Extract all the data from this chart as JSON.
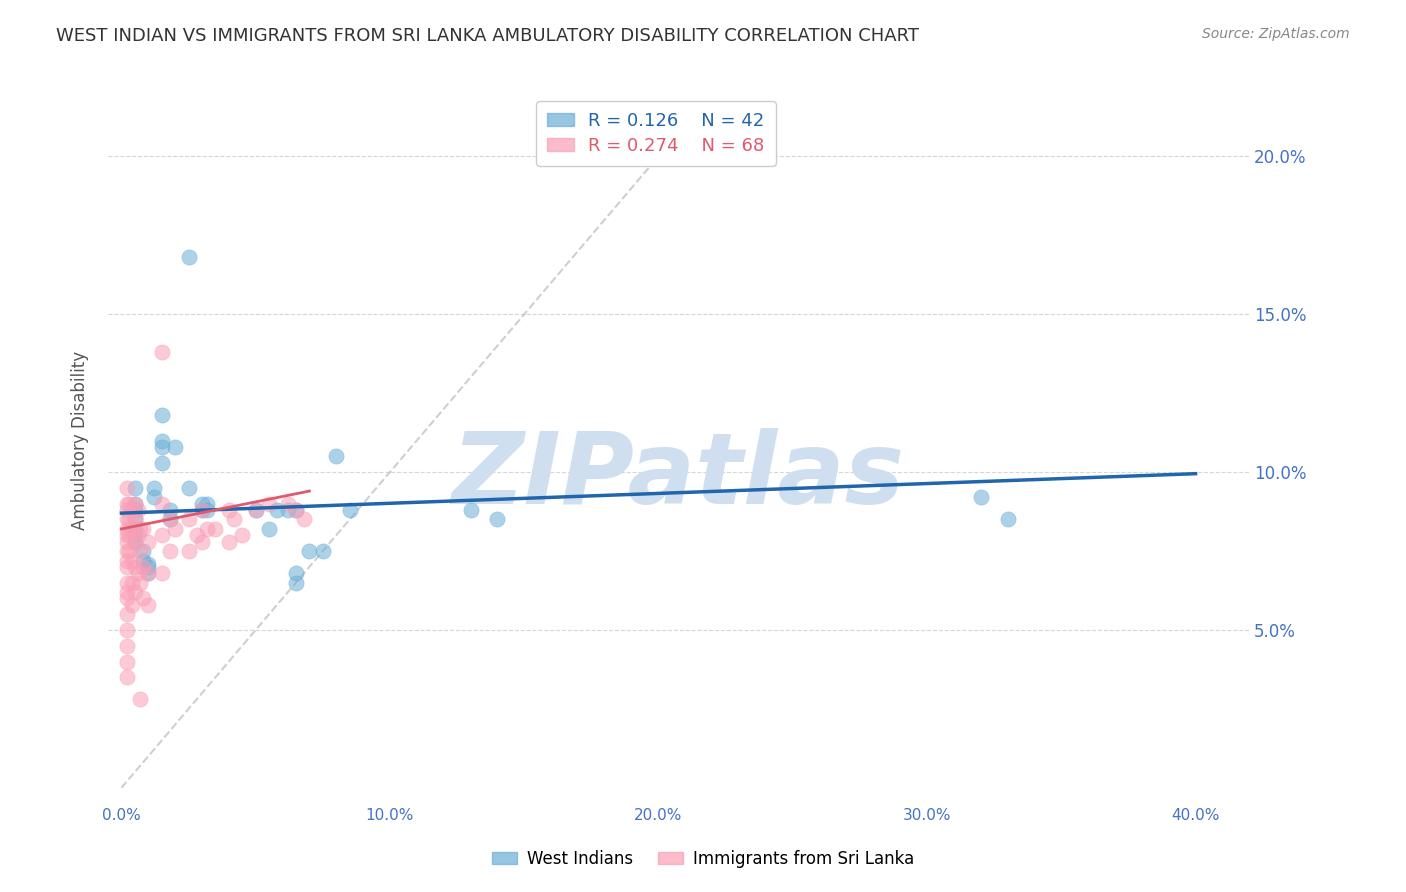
{
  "title": "WEST INDIAN VS IMMIGRANTS FROM SRI LANKA AMBULATORY DISABILITY CORRELATION CHART",
  "source": "Source: ZipAtlas.com",
  "ylabel": "Ambulatory Disability",
  "xlabel_ticks": [
    "0.0%",
    "10.0%",
    "20.0%",
    "30.0%",
    "40.0%"
  ],
  "xlabel_vals": [
    0.0,
    0.1,
    0.2,
    0.3,
    0.4
  ],
  "ylabel_ticks": [
    "5.0%",
    "10.0%",
    "15.0%",
    "20.0%"
  ],
  "ylabel_vals": [
    0.05,
    0.1,
    0.15,
    0.2
  ],
  "xlim": [
    -0.005,
    0.42
  ],
  "ylim": [
    -0.005,
    0.225
  ],
  "background_color": "#ffffff",
  "grid_color": "#cccccc",
  "watermark_text": "ZIPatlas",
  "watermark_color": "#d0dff0",
  "blue_scatter_x": [
    0.025,
    0.015,
    0.02,
    0.015,
    0.005,
    0.005,
    0.005,
    0.005,
    0.005,
    0.005,
    0.005,
    0.008,
    0.008,
    0.01,
    0.01,
    0.01,
    0.012,
    0.012,
    0.015,
    0.015,
    0.018,
    0.018,
    0.025,
    0.03,
    0.03,
    0.032,
    0.032,
    0.05,
    0.055,
    0.058,
    0.062,
    0.065,
    0.07,
    0.075,
    0.065,
    0.065,
    0.08,
    0.085,
    0.13,
    0.14,
    0.32,
    0.33
  ],
  "blue_scatter_y": [
    0.168,
    0.118,
    0.108,
    0.103,
    0.095,
    0.09,
    0.088,
    0.085,
    0.082,
    0.08,
    0.078,
    0.075,
    0.072,
    0.071,
    0.07,
    0.068,
    0.095,
    0.092,
    0.11,
    0.108,
    0.088,
    0.085,
    0.095,
    0.09,
    0.088,
    0.09,
    0.088,
    0.088,
    0.082,
    0.088,
    0.088,
    0.088,
    0.075,
    0.075,
    0.068,
    0.065,
    0.105,
    0.088,
    0.088,
    0.085,
    0.092,
    0.085
  ],
  "pink_scatter_x": [
    0.002,
    0.002,
    0.002,
    0.002,
    0.002,
    0.002,
    0.002,
    0.002,
    0.002,
    0.002,
    0.002,
    0.002,
    0.002,
    0.002,
    0.002,
    0.002,
    0.002,
    0.002,
    0.003,
    0.003,
    0.003,
    0.003,
    0.004,
    0.004,
    0.004,
    0.004,
    0.004,
    0.005,
    0.005,
    0.005,
    0.005,
    0.005,
    0.006,
    0.006,
    0.006,
    0.007,
    0.007,
    0.007,
    0.007,
    0.008,
    0.008,
    0.008,
    0.01,
    0.01,
    0.01,
    0.015,
    0.015,
    0.015,
    0.015,
    0.018,
    0.018,
    0.02,
    0.025,
    0.025,
    0.028,
    0.03,
    0.03,
    0.032,
    0.035,
    0.04,
    0.04,
    0.042,
    0.045,
    0.05,
    0.055,
    0.062,
    0.065,
    0.068
  ],
  "pink_scatter_y": [
    0.095,
    0.09,
    0.088,
    0.085,
    0.082,
    0.08,
    0.078,
    0.075,
    0.072,
    0.07,
    0.065,
    0.062,
    0.06,
    0.055,
    0.05,
    0.045,
    0.04,
    0.035,
    0.09,
    0.085,
    0.08,
    0.075,
    0.088,
    0.082,
    0.072,
    0.065,
    0.058,
    0.09,
    0.085,
    0.078,
    0.07,
    0.062,
    0.088,
    0.08,
    0.068,
    0.082,
    0.075,
    0.065,
    0.028,
    0.082,
    0.07,
    0.06,
    0.078,
    0.068,
    0.058,
    0.138,
    0.09,
    0.08,
    0.068,
    0.085,
    0.075,
    0.082,
    0.085,
    0.075,
    0.08,
    0.088,
    0.078,
    0.082,
    0.082,
    0.088,
    0.078,
    0.085,
    0.08,
    0.088,
    0.09,
    0.09,
    0.088,
    0.085
  ],
  "blue_R": 0.126,
  "blue_N": 42,
  "pink_R": 0.274,
  "pink_N": 68,
  "blue_line_x": [
    0.0,
    0.4
  ],
  "blue_line_y": [
    0.087,
    0.0995
  ],
  "pink_line_x": [
    0.0,
    0.07
  ],
  "pink_line_y": [
    0.082,
    0.094
  ],
  "diag_line_x": [
    0.0,
    0.215
  ],
  "diag_line_y": [
    0.0,
    0.215
  ],
  "blue_color": "#6baed6",
  "pink_color": "#fa9fb5",
  "blue_line_color": "#2166ac",
  "pink_line_color": "#e05a6e",
  "diag_line_color": "#bbbbbb",
  "right_axis_color": "#4472c4",
  "legend_label_1": "West Indians",
  "legend_label_2": "Immigrants from Sri Lanka"
}
